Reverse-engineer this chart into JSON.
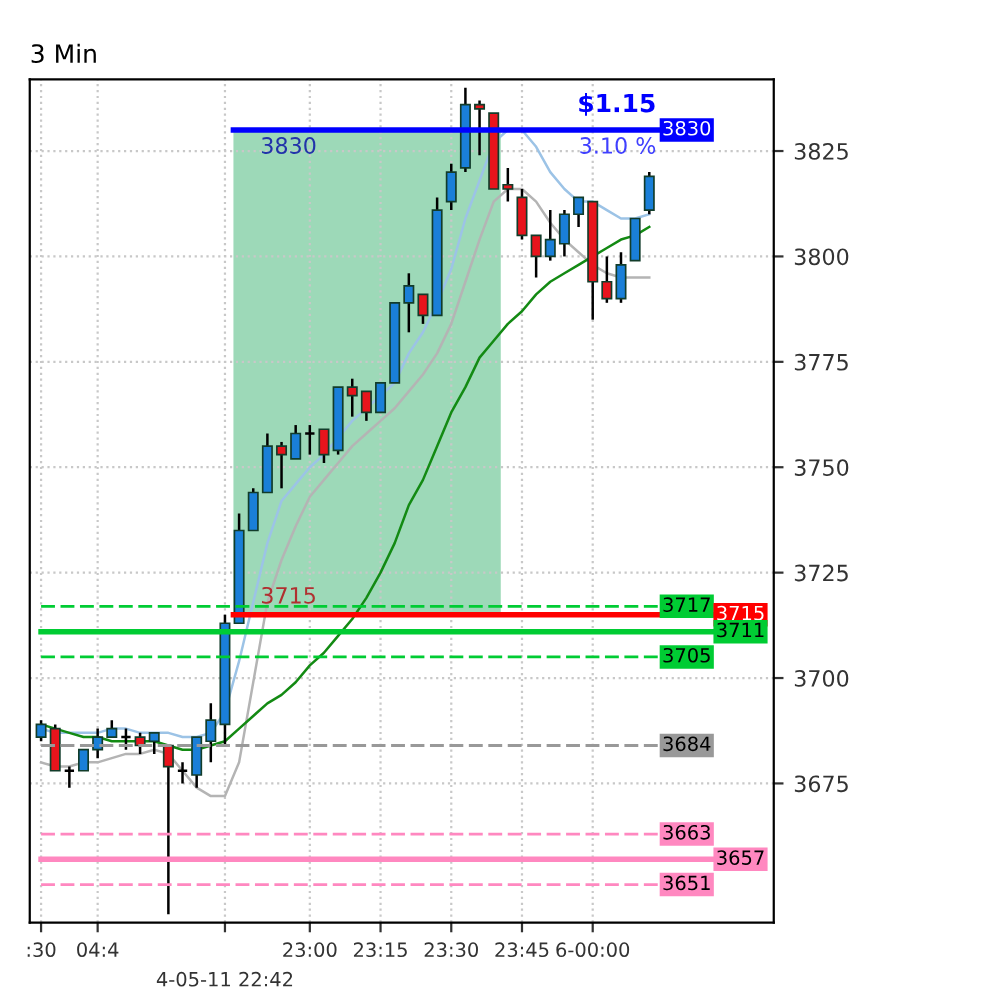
{
  "chart_data": {
    "type": "candlestick",
    "title": "3 Min",
    "categories": [
      ":30",
      null,
      null,
      null,
      "04:4",
      null,
      null,
      null,
      null,
      null,
      null,
      null,
      null,
      "4-05-11 22:42",
      null,
      null,
      null,
      null,
      null,
      "23:00",
      null,
      null,
      null,
      null,
      "23:15",
      null,
      null,
      null,
      null,
      "23:30",
      null,
      null,
      null,
      null,
      "23:45",
      null,
      null,
      null,
      null,
      "6-00:00",
      null,
      null,
      null,
      null
    ],
    "ohlc": [
      [
        3686,
        3690,
        3685,
        3689
      ],
      [
        3688,
        3689,
        3678,
        3678
      ],
      [
        3678,
        3679,
        3674,
        3678
      ],
      [
        3678,
        3683,
        3678,
        3683
      ],
      [
        3683,
        3688,
        3681,
        3686
      ],
      [
        3686,
        3690,
        3686,
        3688
      ],
      [
        3686,
        3688,
        3683,
        3686
      ],
      [
        3686,
        3687,
        3682,
        3684
      ],
      [
        3685,
        3687,
        3682,
        3687
      ],
      [
        3684,
        3684,
        3644,
        3679
      ],
      [
        3678,
        3680,
        3675,
        3678
      ],
      [
        3677,
        3686,
        3674,
        3686
      ],
      [
        3685,
        3694,
        3680,
        3690
      ],
      [
        3689,
        3715,
        3684,
        3713
      ],
      [
        3713,
        3739,
        3713,
        3735
      ],
      [
        3735,
        3745,
        3735,
        3744
      ],
      [
        3744,
        3758,
        3744,
        3755
      ],
      [
        3755,
        3756,
        3745,
        3753
      ],
      [
        3752,
        3760,
        3752,
        3758
      ],
      [
        3758,
        3760,
        3753,
        3758
      ],
      [
        3759,
        3759,
        3751,
        3753
      ],
      [
        3754,
        3769,
        3753,
        3769
      ],
      [
        3769,
        3771,
        3762,
        3767
      ],
      [
        3768,
        3768,
        3761,
        3763
      ],
      [
        3763,
        3770,
        3763,
        3770
      ],
      [
        3770,
        3789,
        3770,
        3789
      ],
      [
        3789,
        3796,
        3782,
        3793
      ],
      [
        3791,
        3791,
        3784,
        3786
      ],
      [
        3786,
        3814,
        3786,
        3811
      ],
      [
        3813,
        3822,
        3811,
        3820
      ],
      [
        3821,
        3840,
        3820,
        3836
      ],
      [
        3836,
        3837,
        3824,
        3835
      ],
      [
        3834,
        3834,
        3816,
        3816
      ],
      [
        3817,
        3821,
        3813,
        3816
      ],
      [
        3814,
        3816,
        3804,
        3805
      ],
      [
        3805,
        3805,
        3795,
        3800
      ],
      [
        3800,
        3811,
        3799,
        3804
      ],
      [
        3803,
        3811,
        3800,
        3810
      ],
      [
        3810,
        3814,
        3807,
        3814
      ],
      [
        3813,
        3813,
        3785,
        3794
      ],
      [
        3794,
        3800,
        3789,
        3790
      ],
      [
        3790,
        3801,
        3789,
        3798
      ],
      [
        3799,
        3809,
        3799,
        3809
      ],
      [
        3811,
        3820,
        3810,
        3819
      ]
    ],
    "colors": [
      "#1a7fd8",
      "#e8141c",
      "#000000",
      "#1a7fd8",
      "#1a7fd8",
      "#1a7fd8",
      "#000000",
      "#e8141c",
      "#1a7fd8",
      "#e8141c",
      "#000000",
      "#1a7fd8",
      "#1a7fd8",
      "#1a7fd8",
      "#1a7fd8",
      "#1a7fd8",
      "#1a7fd8",
      "#e8141c",
      "#1a7fd8",
      "#000000",
      "#e8141c",
      "#1a7fd8",
      "#e8141c",
      "#e8141c",
      "#1a7fd8",
      "#1a7fd8",
      "#1a7fd8",
      "#e8141c",
      "#1a7fd8",
      "#1a7fd8",
      "#1a7fd8",
      "#e8141c",
      "#e8141c",
      "#e8141c",
      "#e8141c",
      "#e8141c",
      "#1a7fd8",
      "#1a7fd8",
      "#1a7fd8",
      "#e8141c",
      "#e8141c",
      "#1a7fd8",
      "#1a7fd8",
      "#1a7fd8"
    ],
    "series": [
      {
        "type": "line",
        "color": "#9cc3e6",
        "values": [
          3688,
          3687,
          3687,
          3687,
          3687,
          3688,
          3688,
          3687,
          3687,
          3687,
          3686,
          3686,
          3687,
          3692,
          3704,
          3718,
          3732,
          3742,
          3746,
          3750,
          3753,
          3757,
          3761,
          3764,
          3767,
          3770,
          3777,
          3782,
          3789,
          3797,
          3809,
          3818,
          3827,
          3830,
          3830,
          3826,
          3820,
          3816,
          3813,
          3813,
          3811,
          3809,
          3809,
          3810
        ]
      },
      {
        "type": "line",
        "color": "#b4b4b4",
        "values": [
          3680,
          3679,
          3679,
          3680,
          3680,
          3681,
          3682,
          3682,
          3683,
          3682,
          3678,
          3674,
          3672,
          3672,
          3680,
          3699,
          3718,
          3728,
          3736,
          3743,
          3747,
          3751,
          3755,
          3758,
          3761,
          3764,
          3768,
          3772,
          3777,
          3784,
          3794,
          3804,
          3813,
          3816,
          3816,
          3813,
          3808,
          3804,
          3801,
          3798,
          3796,
          3795,
          3795,
          3795
        ]
      },
      {
        "type": "line",
        "color": "#138a13",
        "values": [
          3689,
          3688,
          3687,
          3686,
          3686,
          3685,
          3685,
          3685,
          3685,
          3684,
          3683,
          3683,
          3684,
          3685,
          3688,
          3691,
          3694,
          3696,
          3699,
          3703,
          3706,
          3710,
          3714,
          3719,
          3725,
          3732,
          3741,
          3747,
          3755,
          3763,
          3769,
          3776,
          3780,
          3784,
          3787,
          3791,
          3794,
          3796,
          3798,
          3800,
          3802,
          3804,
          3805,
          3807
        ]
      }
    ],
    "ylim": [
      3642,
      3842
    ],
    "yticks": [
      3675,
      3700,
      3725,
      3750,
      3775,
      3800,
      3825
    ],
    "ref_lines": [
      {
        "axis": "y",
        "value": 3830,
        "label": "3830",
        "color": "#0000ff",
        "line_style": "solid"
      },
      {
        "axis": "y",
        "value": 3717,
        "label": "3717",
        "color": "#00cc33",
        "line_style": "dashed"
      },
      {
        "axis": "y",
        "value": 3715,
        "label": "3715",
        "color": "#ff0000",
        "line_style": "solid"
      },
      {
        "axis": "y",
        "value": 3711,
        "label": "3711",
        "color": "#00cc33",
        "line_style": "solid"
      },
      {
        "axis": "y",
        "value": 3705,
        "label": "3705",
        "color": "#00cc33",
        "line_style": "dashed"
      },
      {
        "axis": "y",
        "value": 3684,
        "label": "3684",
        "color": "#999999",
        "line_style": "dashed"
      },
      {
        "axis": "y",
        "value": 3663,
        "label": "3663",
        "color": "#ff88c0",
        "line_style": "dashed"
      },
      {
        "axis": "y",
        "value": 3657,
        "label": "3657",
        "color": "#ff88c0",
        "line_style": "solid"
      },
      {
        "axis": "y",
        "value": 3651,
        "label": "3651",
        "color": "#ff88c0",
        "line_style": "dashed"
      }
    ],
    "annotations": [
      {
        "text": "$1.15",
        "y": 3830
      },
      {
        "text": "3.10 %",
        "y": 3830
      },
      {
        "text": "3830",
        "y": 3830
      },
      {
        "text": "3715",
        "y": 3715
      }
    ],
    "grid": true
  }
}
